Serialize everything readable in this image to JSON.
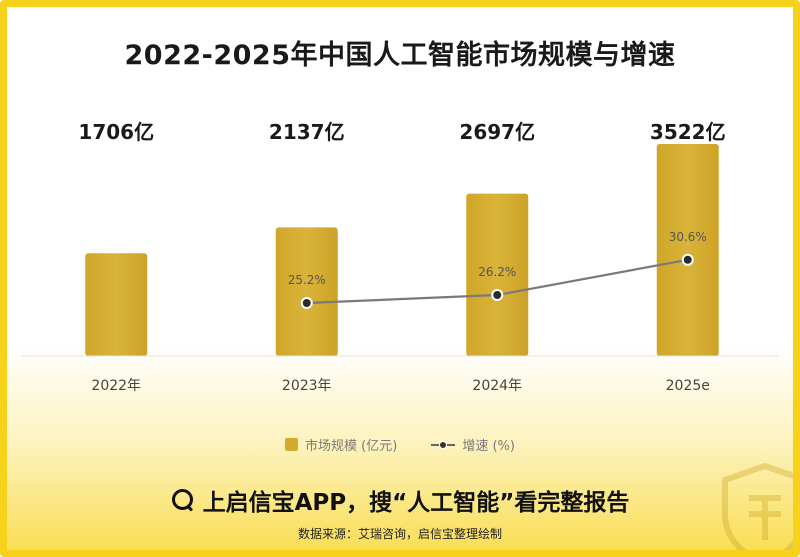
{
  "title": "2022-2025年中国人工智能市场规模与增速",
  "chart_data": {
    "type": "bar",
    "categories": [
      "2022年",
      "2023年",
      "2024年",
      "2025e"
    ],
    "series": [
      {
        "name": "市场规模 (亿元)",
        "type": "bar",
        "values": [
          1706,
          2137,
          2697,
          3522
        ],
        "value_labels": [
          "1706亿",
          "2137亿",
          "2697亿",
          "3522亿"
        ]
      },
      {
        "name": "增速 (%)",
        "type": "line",
        "values": [
          null,
          25.2,
          26.2,
          30.6
        ],
        "value_labels": [
          "",
          "25.2%",
          "26.2%",
          "30.6%"
        ]
      }
    ],
    "grid": false,
    "legend": "bottom",
    "colors": {
      "bar": "#D4AC2B",
      "line": "#7A7A7A",
      "marker": "#333333"
    }
  },
  "legend": {
    "bar_label": "市场规模 (亿元)",
    "line_label": "增速 (%)"
  },
  "cta": {
    "text": "上启信宝APP，搜“人工智能”看完整报告"
  },
  "source": {
    "text": "数据来源：艾瑞咨询，启信宝整理绘制"
  },
  "colors": {
    "border": "#F7D21A",
    "accent": "#D4AC2B"
  }
}
